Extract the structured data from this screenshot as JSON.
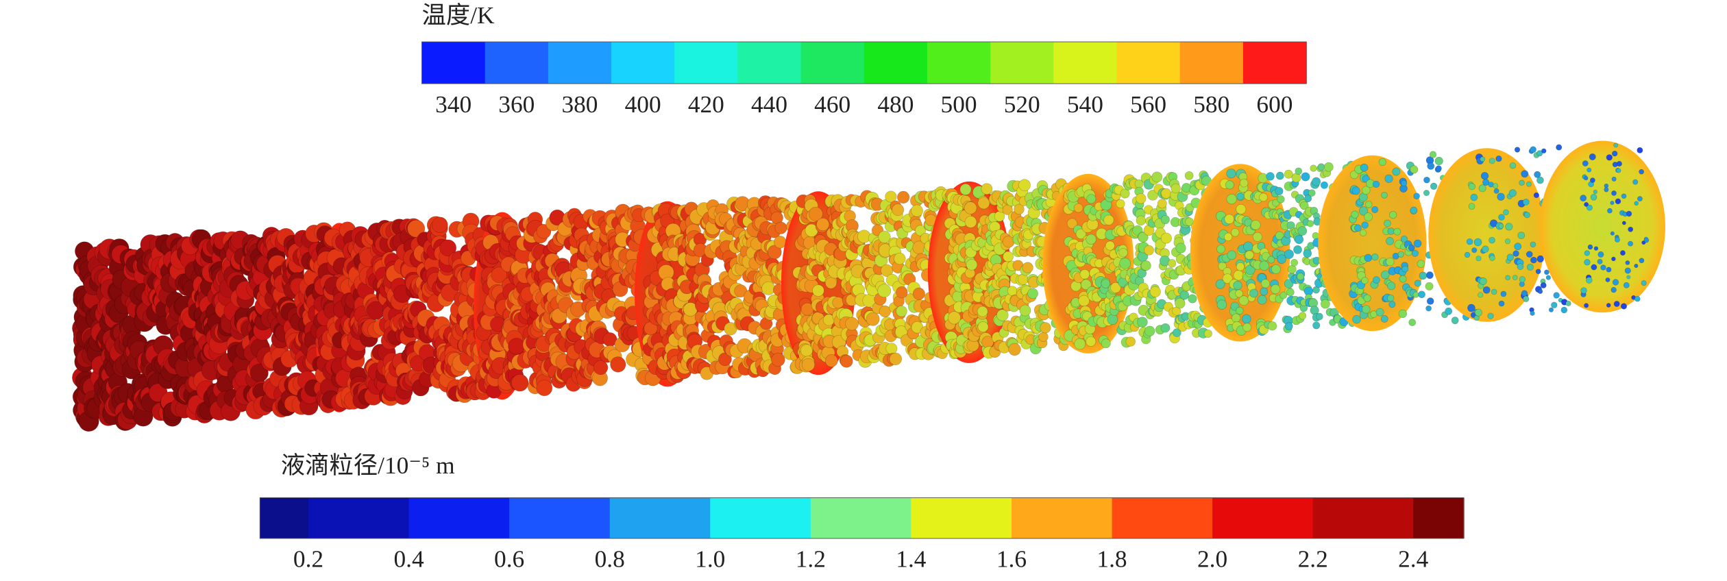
{
  "temperature_legend": {
    "title": "温度/K",
    "ticks": [
      "340",
      "360",
      "380",
      "400",
      "420",
      "440",
      "460",
      "480",
      "500",
      "520",
      "540",
      "560",
      "580",
      "600"
    ]
  },
  "diameter_legend": {
    "title": "液滴粒径/10⁻⁵ m",
    "ticks": [
      "0.2",
      "0.4",
      "0.6",
      "0.8",
      "1.0",
      "1.2",
      "1.4",
      "1.6",
      "1.8",
      "2.0",
      "2.2",
      "2.4"
    ]
  }
}
